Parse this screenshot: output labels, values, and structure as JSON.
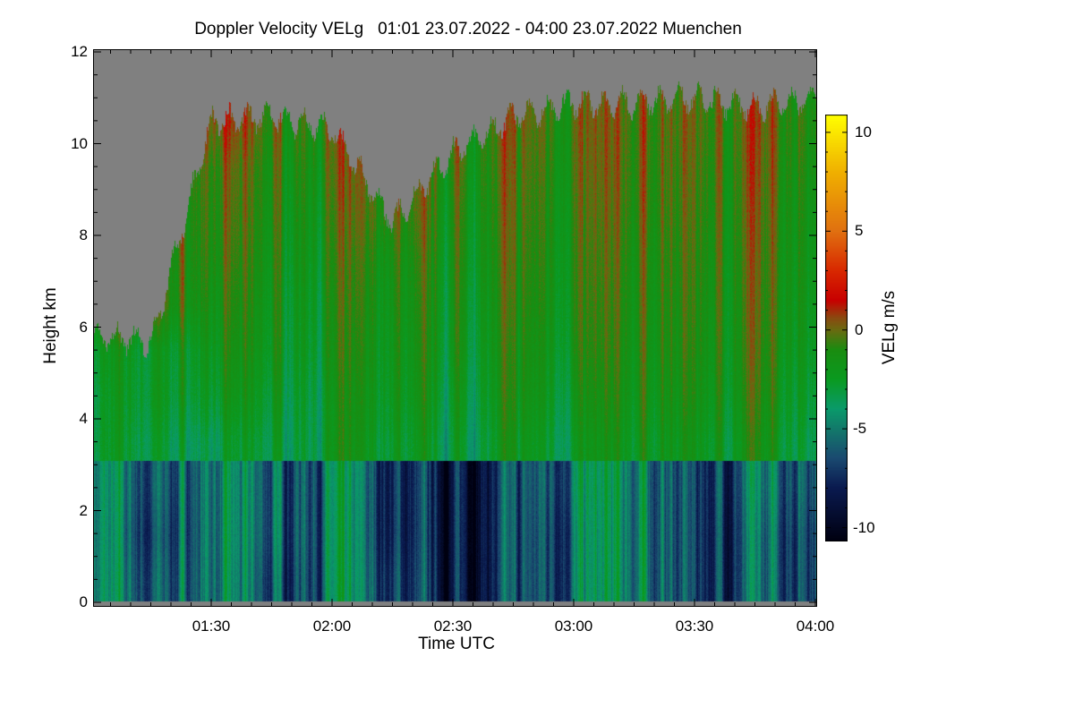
{
  "chart_data": {
    "type": "heatmap",
    "title": "Doppler Velocity VELg   01:01 23.07.2022 - 04:00 23.07.2022 Muenchen",
    "xlabel": "Time UTC",
    "ylabel": "Height km",
    "colorbar_label": "VELg m/s",
    "x_range_minutes": [
      61,
      240
    ],
    "y_range_km": [
      0,
      12
    ],
    "color_range": [
      -10.7,
      10.9
    ],
    "x_ticks": [
      {
        "value": 90,
        "label": "01:30"
      },
      {
        "value": 120,
        "label": "02:00"
      },
      {
        "value": 150,
        "label": "02:30"
      },
      {
        "value": 180,
        "label": "03:00"
      },
      {
        "value": 210,
        "label": "03:30"
      },
      {
        "value": 240,
        "label": "04:00"
      }
    ],
    "y_ticks": [
      0,
      2,
      4,
      6,
      8,
      10,
      12
    ],
    "colorbar_ticks": [
      10,
      5,
      0,
      -5,
      -10
    ],
    "no_data_color": "#808080",
    "colormap": [
      [
        -10.7,
        "#000010"
      ],
      [
        -8,
        "#0a1a50"
      ],
      [
        -6.5,
        "#1a4a70"
      ],
      [
        -5,
        "#127a6a"
      ],
      [
        -4,
        "#0a9a6a"
      ],
      [
        -2.5,
        "#0a9a20"
      ],
      [
        -1,
        "#1a8c10"
      ],
      [
        0,
        "#6a6a10"
      ],
      [
        0.6,
        "#8a4a10"
      ],
      [
        1.5,
        "#c80000"
      ],
      [
        3,
        "#d82800"
      ],
      [
        5,
        "#e07010"
      ],
      [
        8,
        "#f0b000"
      ],
      [
        10.9,
        "#ffff00"
      ]
    ],
    "time_minutes": [
      61,
      75,
      90,
      105,
      120,
      135,
      150,
      165,
      180,
      195,
      210,
      225,
      240
    ],
    "echo_top_km": [
      5.8,
      5.7,
      10.5,
      10.6,
      10.3,
      8.3,
      9.8,
      10.6,
      10.9,
      10.9,
      11.0,
      10.8,
      11.0
    ],
    "boundary_layer_top_km": 3.1,
    "height_centers_km": [
      0.5,
      1.5,
      2.5,
      3.5,
      4.5,
      5.5,
      6.5,
      7.5,
      8.5,
      9.5,
      10.5,
      11.5
    ],
    "values": [
      [
        -4.5,
        -6.5,
        -5.0,
        -6.5,
        -5.0,
        -7.0,
        -8.5,
        -7.5,
        -5.0,
        -4.5,
        -7.0,
        -6.5,
        -5.0
      ],
      [
        -4.5,
        -7.0,
        -5.0,
        -6.0,
        -5.0,
        -7.5,
        -8.5,
        -7.5,
        -5.0,
        -4.5,
        -7.0,
        -6.5,
        -5.0
      ],
      [
        -4.5,
        -6.5,
        -5.0,
        -6.0,
        -5.0,
        -7.5,
        -8.5,
        -7.5,
        -4.5,
        -4.5,
        -7.0,
        -6.0,
        -4.5
      ],
      [
        -3.0,
        -3.0,
        -3.5,
        -3.0,
        -2.5,
        -2.5,
        -3.0,
        -2.5,
        -2.5,
        -2.0,
        -2.0,
        -2.0,
        -2.5
      ],
      [
        -3.0,
        -2.5,
        -2.5,
        -2.5,
        -2.5,
        -2.0,
        -2.5,
        -2.0,
        -2.0,
        -1.5,
        -1.5,
        -1.5,
        -2.0
      ],
      [
        -2.5,
        -2.5,
        -2.0,
        -2.0,
        -2.0,
        -1.8,
        -2.0,
        -1.8,
        -1.5,
        -1.2,
        -1.2,
        -1.2,
        -1.5
      ],
      [
        null,
        null,
        -1.5,
        -1.8,
        -1.8,
        -1.5,
        -1.8,
        -1.5,
        -1.2,
        -1.0,
        -1.0,
        -1.0,
        -1.2
      ],
      [
        null,
        null,
        -1.0,
        -1.5,
        -1.5,
        -1.2,
        -1.5,
        -1.2,
        -1.0,
        -0.8,
        -0.8,
        -0.8,
        -1.0
      ],
      [
        null,
        null,
        -0.8,
        -1.2,
        -1.2,
        null,
        -1.2,
        -1.0,
        -0.8,
        -0.5,
        -0.6,
        -0.6,
        -0.8
      ],
      [
        null,
        null,
        -0.5,
        -1.0,
        -0.8,
        null,
        -0.8,
        -0.8,
        -0.5,
        -0.3,
        -0.4,
        -0.4,
        -0.5
      ],
      [
        null,
        null,
        0.5,
        -0.5,
        -0.5,
        null,
        null,
        -0.5,
        -0.3,
        -0.2,
        -0.2,
        -0.2,
        -0.3
      ],
      [
        null,
        null,
        null,
        null,
        null,
        null,
        null,
        null,
        null,
        null,
        null,
        null,
        null
      ]
    ]
  }
}
